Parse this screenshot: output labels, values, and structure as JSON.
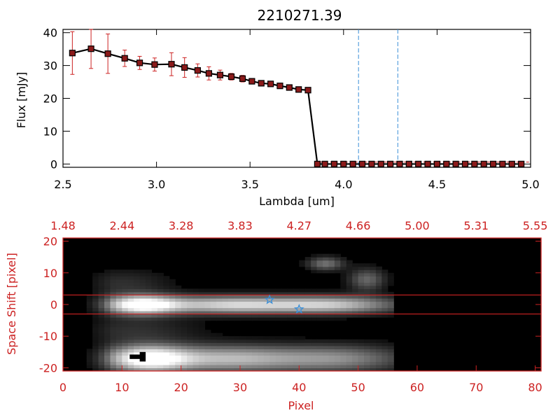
{
  "chart_data": [
    {
      "type": "scatter",
      "title": "2210271.39",
      "xlabel": "Lambda [um]",
      "ylabel": "Flux [mJy]",
      "xlim": [
        2.5,
        5.0
      ],
      "ylim": [
        -1,
        41
      ],
      "x_ticks": [
        "2.5",
        "3.0",
        "3.5",
        "4.0",
        "4.5",
        "5.0"
      ],
      "y_ticks": [
        "0",
        "10",
        "20",
        "30",
        "40"
      ],
      "x_tick_values": [
        2.5,
        3.0,
        3.5,
        4.0,
        4.5,
        5.0
      ],
      "y_tick_values": [
        0,
        10,
        20,
        30,
        40
      ],
      "vlines": [
        4.08,
        4.29
      ],
      "colors": {
        "line": "#000000",
        "marker": "#8b1a1a",
        "error": "#cc2222",
        "vline": "#3a8fd8"
      },
      "series": [
        {
          "x": [
            2.55,
            2.65,
            2.74,
            2.83,
            2.91,
            2.99,
            3.08,
            3.15,
            3.22,
            3.28,
            3.34,
            3.4,
            3.46,
            3.51,
            3.56,
            3.61,
            3.66,
            3.71,
            3.76,
            3.81,
            3.86,
            3.9,
            3.95,
            4.0,
            4.05,
            4.1,
            4.15,
            4.2,
            4.25,
            4.3,
            4.35,
            4.4,
            4.45,
            4.5,
            4.55,
            4.6,
            4.65,
            4.7,
            4.75,
            4.8,
            4.85,
            4.9,
            4.95
          ],
          "y": [
            33.8,
            35.1,
            33.6,
            32.2,
            30.8,
            30.3,
            30.4,
            29.4,
            28.5,
            27.6,
            27.1,
            26.6,
            26.0,
            25.2,
            24.6,
            24.4,
            23.8,
            23.3,
            22.7,
            22.5,
            0,
            0,
            0,
            0,
            0,
            0,
            0,
            0,
            0,
            0,
            0,
            0,
            0,
            0,
            0,
            0,
            0,
            0,
            0,
            0,
            0,
            0,
            0
          ],
          "err": [
            6.5,
            6.0,
            6.0,
            2.5,
            2.0,
            2.0,
            3.5,
            3.0,
            2.0,
            2.0,
            1.5,
            1.0,
            1.0,
            0.8,
            0.8,
            0.8,
            0.8,
            0.8,
            0.8,
            0.8,
            0,
            0,
            0,
            0,
            0,
            0,
            0,
            0,
            0,
            0,
            0,
            0,
            0,
            0,
            0,
            0,
            0,
            0,
            0,
            0,
            0,
            0,
            0
          ]
        }
      ]
    },
    {
      "type": "heatmap",
      "xlabel": "Pixel",
      "ylabel": "Space Shift [pixel]",
      "xlim": [
        0,
        81
      ],
      "ylim": [
        -21,
        21
      ],
      "x_ticks": [
        "0",
        "10",
        "20",
        "30",
        "40",
        "50",
        "60",
        "70",
        "80"
      ],
      "y_ticks": [
        "-20",
        "-10",
        "0",
        "10",
        "20"
      ],
      "x_tick_values": [
        0,
        10,
        20,
        30,
        40,
        50,
        60,
        70,
        80
      ],
      "y_tick_values": [
        -20,
        -10,
        0,
        10,
        20
      ],
      "top_axis_ticks": [
        "1.48",
        "2.44",
        "3.28",
        "3.83",
        "4.27",
        "4.66",
        "5.00",
        "5.31",
        "5.55"
      ],
      "hlines": [
        3,
        -3
      ],
      "stars": [
        {
          "x": 35,
          "y": 1.5
        },
        {
          "x": 40,
          "y": -1.5
        }
      ],
      "colors": {
        "axis": "#cc2222",
        "star": "#3a8fd8"
      },
      "sources": [
        {
          "x": 13,
          "y": 0,
          "sx": 4.5,
          "sy": 2.2,
          "a": 1.0
        },
        {
          "x": 28,
          "y": 0,
          "sx": 9,
          "sy": 2.0,
          "a": 0.8
        },
        {
          "x": 46,
          "y": 0,
          "sx": 8,
          "sy": 2.0,
          "a": 0.7
        },
        {
          "x": 14,
          "y": -17,
          "sx": 5,
          "sy": 3.0,
          "a": 1.0
        },
        {
          "x": 28,
          "y": -17,
          "sx": 9,
          "sy": 3.0,
          "a": 0.7
        },
        {
          "x": 47,
          "y": -17,
          "sx": 8,
          "sy": 3.0,
          "a": 0.5
        },
        {
          "x": 44.5,
          "y": 13,
          "sx": 2.2,
          "sy": 1.5,
          "a": 0.45
        },
        {
          "x": 51.5,
          "y": 8,
          "sx": 2.2,
          "sy": 2.5,
          "a": 0.4
        },
        {
          "x": 10,
          "y": 7,
          "sx": 6,
          "sy": 3,
          "a": 0.18
        },
        {
          "x": 12,
          "y": -8,
          "sx": 8,
          "sy": 3,
          "a": 0.18
        }
      ],
      "data_extent_x": 56
    }
  ]
}
